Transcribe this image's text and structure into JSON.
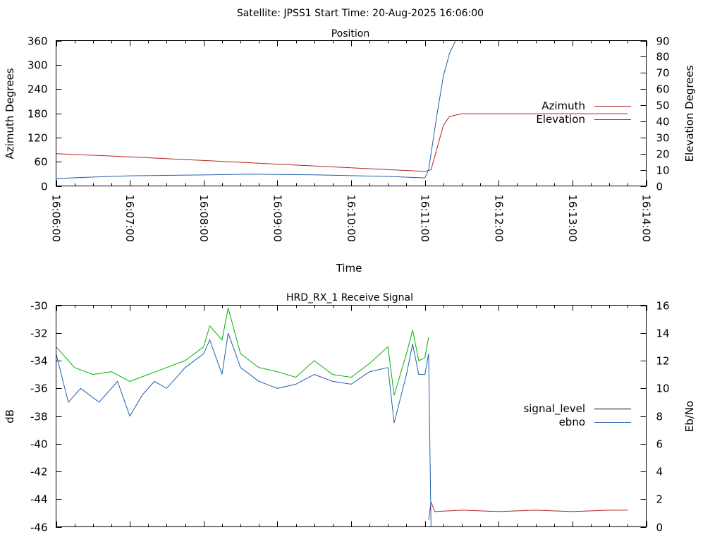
{
  "figure_title": "Satellite: JPSS1    Start Time: 20-Aug-2025 16:06:00",
  "colors": {
    "red": "#b22222",
    "blue": "#1f5fa8",
    "green": "#00b400",
    "black": "#000000"
  },
  "chart_data": [
    {
      "type": "line",
      "title": "Position",
      "xlabel": "Time",
      "ylabel": "Azimuth Degrees",
      "y2label": "Elevation Degrees",
      "x_ticks": [
        "16:06:00",
        "16:07:00",
        "16:08:00",
        "16:09:00",
        "16:10:00",
        "16:11:00",
        "16:12:00",
        "16:13:00",
        "16:14:00"
      ],
      "xlim": [
        "16:06:00",
        "16:14:00"
      ],
      "ylim": [
        0,
        360
      ],
      "y_ticks": [
        0,
        60,
        120,
        180,
        240,
        300,
        360
      ],
      "y2lim": [
        0,
        90
      ],
      "y2_ticks": [
        0,
        10,
        20,
        30,
        40,
        50,
        60,
        70,
        80,
        90
      ],
      "legend_position": "right",
      "grid": false,
      "series": [
        {
          "name": "Azimuth",
          "axis": "left",
          "color": "#b22222",
          "x": [
            "16:06:00",
            "16:07:00",
            "16:08:00",
            "16:09:00",
            "16:10:00",
            "16:11:00",
            "16:11:05",
            "16:11:10",
            "16:11:15",
            "16:11:20",
            "16:11:30",
            "16:13:45"
          ],
          "y": [
            80,
            72,
            63,
            54,
            45,
            36,
            40,
            95,
            150,
            172,
            179,
            179
          ]
        },
        {
          "name": "Elevation",
          "axis": "right",
          "color": "#1f5fa8",
          "x": [
            "16:06:00",
            "16:06:30",
            "16:07:00",
            "16:08:00",
            "16:08:40",
            "16:09:00",
            "16:09:30",
            "16:10:00",
            "16:10:30",
            "16:11:00",
            "16:11:03",
            "16:11:06",
            "16:11:10",
            "16:11:15",
            "16:11:20",
            "16:11:25"
          ],
          "y": [
            4.6,
            5.5,
            6.3,
            6.8,
            7.3,
            7.1,
            6.9,
            6.4,
            5.9,
            5.0,
            10,
            25,
            45,
            68,
            82,
            90
          ]
        }
      ]
    },
    {
      "type": "line",
      "title": "HRD_RX_1 Receive Signal",
      "ylabel": "dB",
      "y2label": "Eb/No",
      "xlim": [
        "16:06:00",
        "16:14:00"
      ],
      "ylim": [
        -46,
        -30
      ],
      "y_ticks": [
        -46,
        -44,
        -42,
        -40,
        -38,
        -36,
        -34,
        -32,
        -30
      ],
      "y2lim": [
        0,
        16
      ],
      "y2_ticks": [
        0,
        2,
        4,
        6,
        8,
        10,
        12,
        14,
        16
      ],
      "legend_position": "right",
      "grid": false,
      "series": [
        {
          "name": "signal_level",
          "axis": "left",
          "color": "#000000",
          "segments": [
            {
              "color": "#00b400",
              "x": [
                "16:06:00",
                "16:06:15",
                "16:06:30",
                "16:06:45",
                "16:07:00",
                "16:07:15",
                "16:07:30",
                "16:07:45",
                "16:08:00",
                "16:08:05",
                "16:08:15",
                "16:08:20",
                "16:08:30",
                "16:08:45",
                "16:09:00",
                "16:09:15",
                "16:09:30",
                "16:09:45",
                "16:10:00",
                "16:10:15",
                "16:10:30",
                "16:10:35",
                "16:10:45",
                "16:10:50",
                "16:10:55",
                "16:11:00",
                "16:11:03"
              ],
              "y": [
                -33.0,
                -34.5,
                -35.0,
                -34.8,
                -35.5,
                -35.0,
                -34.5,
                -34.0,
                -33.0,
                -31.5,
                -32.5,
                -30.2,
                -33.5,
                -34.5,
                -34.8,
                -35.2,
                -34.0,
                -35.0,
                -35.2,
                -34.2,
                -33.0,
                -36.5,
                -33.5,
                -31.8,
                -34.0,
                -33.8,
                -32.3
              ]
            },
            {
              "color": "#b22222",
              "x": [
                "16:11:03",
                "16:11:05",
                "16:11:08",
                "16:11:30",
                "16:12:00",
                "16:12:30",
                "16:13:00",
                "16:13:30",
                "16:13:45"
              ],
              "y": [
                -45.5,
                -44.2,
                -44.9,
                -44.8,
                -44.9,
                -44.8,
                -44.9,
                -44.8,
                -44.8
              ]
            }
          ]
        },
        {
          "name": "ebno",
          "axis": "right",
          "color": "#1f5fa8",
          "x": [
            "16:06:00",
            "16:06:10",
            "16:06:20",
            "16:06:35",
            "16:06:50",
            "16:07:00",
            "16:07:10",
            "16:07:20",
            "16:07:30",
            "16:07:45",
            "16:08:00",
            "16:08:05",
            "16:08:15",
            "16:08:20",
            "16:08:30",
            "16:08:45",
            "16:09:00",
            "16:09:15",
            "16:09:30",
            "16:09:45",
            "16:10:00",
            "16:10:15",
            "16:10:30",
            "16:10:35",
            "16:10:45",
            "16:10:50",
            "16:10:55",
            "16:11:00",
            "16:11:03",
            "16:11:05"
          ],
          "y": [
            12.5,
            9.0,
            10.0,
            9.0,
            10.5,
            8.0,
            9.5,
            10.5,
            10.0,
            11.5,
            12.5,
            13.5,
            11.0,
            14.0,
            11.5,
            10.5,
            10.0,
            10.3,
            11.0,
            10.5,
            10.3,
            11.2,
            11.5,
            7.5,
            11.0,
            13.2,
            11.0,
            11.0,
            12.5,
            0.0
          ]
        }
      ]
    }
  ]
}
